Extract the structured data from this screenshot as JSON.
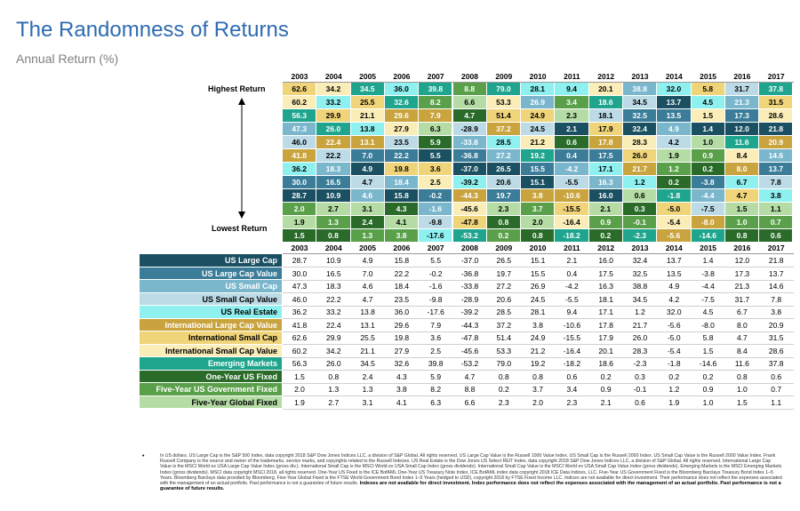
{
  "title": "The Randomness of Returns",
  "subtitle": "Annual Return (%)",
  "labels": {
    "highest": "Highest Return",
    "lowest": "Lowest Return"
  },
  "footnote_bullet": "•",
  "footnote": "In US dollars. US Large Cap is the S&P 500 Index, data copyright 2018 S&P Dow Jones Indices LLC, a division of S&P Global. All rights reserved. US Large Cap Value is the Russell 1000 Value Index. US Small Cap is the Russell 2000 Index. US Small Cap Value is the Russell 2000 Value Index. Frank Russell Company is the source and owner of the trademarks, service marks, and copyrights related to the Russell Indexes. US Real Estate is the Dow Jones US Select REIT Index, data copyright 2018 S&P Dow Jones Indices LLC, a division of S&P Global. All rights reserved. International Large Cap Value is the MSCI World ex USA Large Cap Value Index (gross div.). International Small Cap is the MSCI World ex USA Small Cap Index (gross dividends). International Small Cap Value is the MSCI World ex USA Small Cap Value Index (gross dividends). Emerging Markets is the MSCI Emerging Markets Index (gross dividends). MSCI data copyright MSCI 2018, all rights reserved. One-Year US Fixed is the ICE BofAML One-Year US Treasury Note Index, ICE BofAML index data copyright 2018 ICE Data Indices, LLC. Five-Year US Government Fixed is the Bloomberg Barclays Treasury Bond Index 1–5 Years. Bloomberg Barclays data provided by Bloomberg. Five-Year Global Fixed is the FTSE World Government Bond Index 1–5 Years (hedged to USD), copyright 2018 by FTSE Fixed Income LLC. Indices are not available for direct investment. Their performance does not reflect the expenses associated with the management of an actual portfolio. Past performance is not a guarantee of future results.",
  "footnote_bold": "Indexes are not available for direct investment. Index performance does not reflect the expenses associated with the management of an actual portfolio. Past performance is not a guarantee of future results.",
  "chart_data": {
    "type": "table",
    "title": "The Randomness of Returns",
    "subtitle": "Annual Return (%)",
    "years": [
      "2003",
      "2004",
      "2005",
      "2006",
      "2007",
      "2008",
      "2009",
      "2010",
      "2011",
      "2012",
      "2013",
      "2014",
      "2015",
      "2016",
      "2017"
    ],
    "series": [
      {
        "name": "US Large Cap",
        "color": "#1a5061",
        "text": "light",
        "values": [
          28.7,
          10.9,
          4.9,
          15.8,
          5.5,
          -37.0,
          26.5,
          15.1,
          2.1,
          16.0,
          32.4,
          13.7,
          1.4,
          12.0,
          21.8
        ]
      },
      {
        "name": "US Large Cap Value",
        "color": "#3b7d99",
        "text": "light",
        "values": [
          30.0,
          16.5,
          7.0,
          22.2,
          -0.2,
          -36.8,
          19.7,
          15.5,
          0.4,
          17.5,
          32.5,
          13.5,
          -3.8,
          17.3,
          13.7
        ]
      },
      {
        "name": "US Small Cap",
        "color": "#7ab6cc",
        "text": "light",
        "values": [
          47.3,
          18.3,
          4.6,
          18.4,
          -1.6,
          -33.8,
          27.2,
          26.9,
          -4.2,
          16.3,
          38.8,
          4.9,
          -4.4,
          21.3,
          14.6
        ]
      },
      {
        "name": "US Small Cap Value",
        "color": "#bddbe6",
        "text": "dark",
        "values": [
          46.0,
          22.2,
          4.7,
          23.5,
          -9.8,
          -28.9,
          20.6,
          24.5,
          -5.5,
          18.1,
          34.5,
          4.2,
          -7.5,
          31.7,
          7.8
        ]
      },
      {
        "name": "US Real Estate",
        "color": "#8ff0f0",
        "text": "dark",
        "values": [
          36.2,
          33.2,
          13.8,
          36.0,
          -17.6,
          -39.2,
          28.5,
          28.1,
          9.4,
          17.1,
          1.2,
          32.0,
          4.5,
          6.7,
          3.8
        ]
      },
      {
        "name": "International Large Cap Value",
        "color": "#c9a43e",
        "text": "light",
        "values": [
          41.8,
          22.4,
          13.1,
          29.6,
          7.9,
          -44.3,
          37.2,
          3.8,
          -10.6,
          17.8,
          21.7,
          -5.6,
          -8.0,
          8.0,
          20.9
        ]
      },
      {
        "name": "International Small Cap",
        "color": "#f0d47a",
        "text": "dark",
        "values": [
          62.6,
          29.9,
          25.5,
          19.8,
          3.6,
          -47.8,
          51.4,
          24.9,
          -15.5,
          17.9,
          26.0,
          -5.0,
          5.8,
          4.7,
          31.5
        ]
      },
      {
        "name": "International Small Cap Value",
        "color": "#faedb8",
        "text": "dark",
        "values": [
          60.2,
          34.2,
          21.1,
          27.9,
          2.5,
          -45.6,
          53.3,
          21.2,
          -16.4,
          20.1,
          28.3,
          -5.4,
          1.5,
          8.4,
          28.6
        ]
      },
      {
        "name": "Emerging Markets",
        "color": "#1fa58e",
        "text": "light",
        "values": [
          56.3,
          26.0,
          34.5,
          32.6,
          39.8,
          -53.2,
          79.0,
          19.2,
          -18.2,
          18.6,
          -2.3,
          -1.8,
          -14.6,
          11.6,
          37.8
        ]
      },
      {
        "name": "One-Year US Fixed",
        "color": "#2a6b2a",
        "text": "light",
        "values": [
          1.5,
          0.8,
          2.4,
          4.3,
          5.9,
          4.7,
          0.8,
          0.8,
          0.6,
          0.2,
          0.3,
          0.2,
          0.2,
          0.8,
          0.6
        ]
      },
      {
        "name": "Five-Year US Government Fixed",
        "color": "#5aa04a",
        "text": "light",
        "values": [
          2.0,
          1.3,
          1.3,
          3.8,
          8.2,
          8.8,
          0.2,
          3.7,
          3.4,
          0.9,
          -0.1,
          1.2,
          0.9,
          1.0,
          0.7
        ]
      },
      {
        "name": "Five-Year Global Fixed",
        "color": "#b5dca5",
        "text": "dark",
        "values": [
          1.9,
          2.7,
          3.1,
          4.1,
          6.3,
          6.6,
          2.3,
          2.0,
          2.3,
          2.1,
          0.6,
          1.9,
          1.0,
          1.5,
          1.1
        ]
      }
    ]
  }
}
